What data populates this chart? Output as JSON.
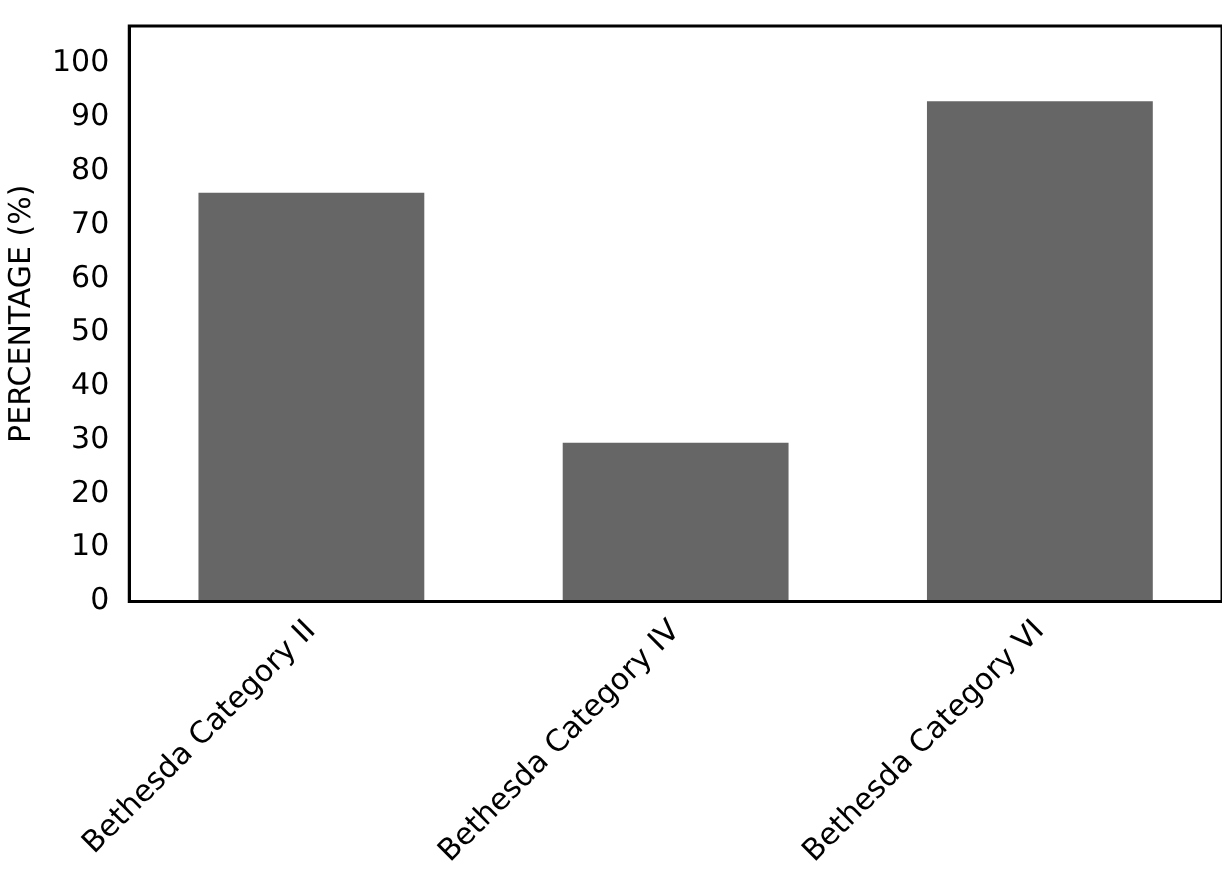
{
  "chart_data": {
    "type": "bar",
    "ylabel": "PERCENTAGE (%)",
    "categories": [
      "Bethesda Category II",
      "Bethesda Category IV",
      "Bethesda Category VI"
    ],
    "values": [
      76,
      29.5,
      93
    ],
    "color": "#666666",
    "ylim": [
      0,
      107
    ],
    "yticks": [
      0,
      10,
      20,
      30,
      40,
      50,
      60,
      70,
      80,
      90,
      100
    ],
    "grid": false,
    "legend": false
  }
}
